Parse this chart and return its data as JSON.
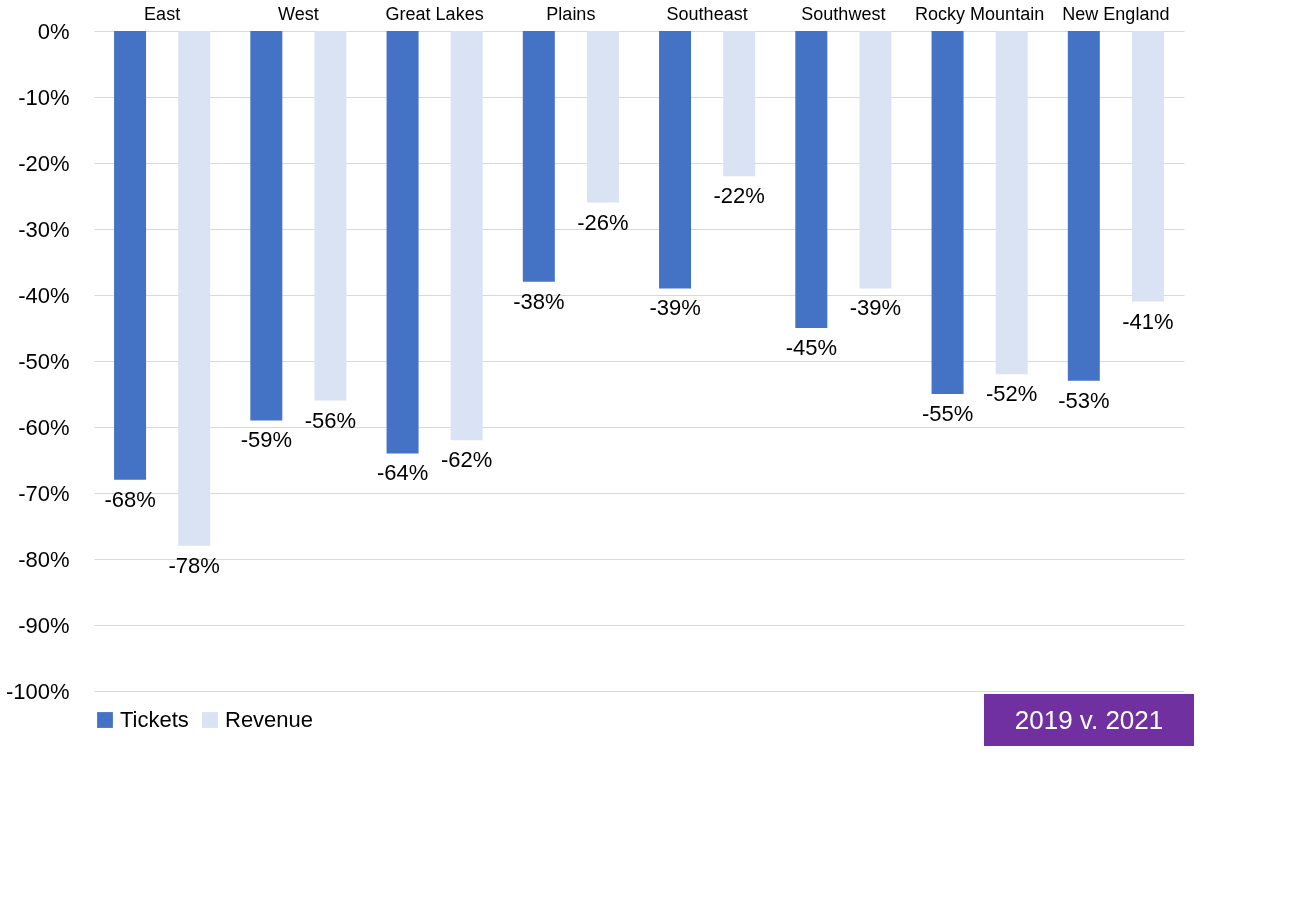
{
  "chart_data": {
    "type": "bar",
    "categories": [
      "East",
      "West",
      "Great Lakes",
      "Plains",
      "Southeast",
      "Southwest",
      "Rocky Mountain",
      "New England"
    ],
    "series": [
      {
        "name": "Tickets",
        "color": "#4472c4",
        "values": [
          -68,
          -59,
          -64,
          -38,
          -39,
          -45,
          -55,
          -53
        ],
        "value_labels": [
          "-68%",
          "-59%",
          "-64%",
          "-38%",
          "-39%",
          "-45%",
          "-55%",
          "-53%"
        ]
      },
      {
        "name": "Revenue",
        "color": "#dae3f3",
        "values": [
          -78,
          -56,
          -62,
          -26,
          -22,
          -39,
          -52,
          -41
        ],
        "value_labels": [
          "-78%",
          "-56%",
          "-62%",
          "-26%",
          "-22%",
          "-39%",
          "-52%",
          "-41%"
        ]
      }
    ],
    "ylim": [
      -100,
      0
    ],
    "yticks": [
      {
        "value": 0,
        "label": "0%"
      },
      {
        "value": -10,
        "label": "-10%"
      },
      {
        "value": -20,
        "label": "-20%"
      },
      {
        "value": -30,
        "label": "-30%"
      },
      {
        "value": -40,
        "label": "-40%"
      },
      {
        "value": -50,
        "label": "-50%"
      },
      {
        "value": -60,
        "label": "-60%"
      },
      {
        "value": -70,
        "label": "-70%"
      },
      {
        "value": -80,
        "label": "-80%"
      },
      {
        "value": -90,
        "label": "-90%"
      },
      {
        "value": -100,
        "label": "-100%"
      }
    ],
    "grid": "y",
    "legend": "bottom",
    "annotations": [
      "2019 v. 2021"
    ]
  }
}
